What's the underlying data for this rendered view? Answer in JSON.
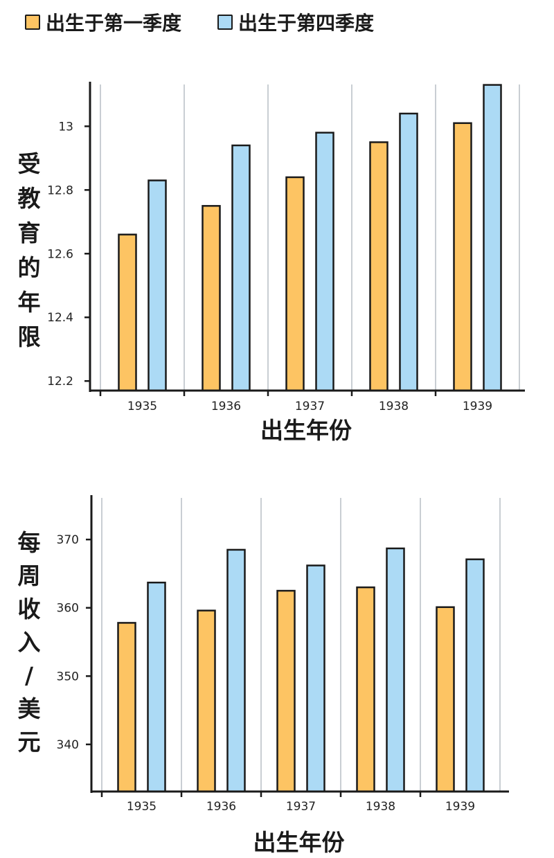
{
  "legend": {
    "q1": {
      "label": "出生于第一季度",
      "color": "#fdc463"
    },
    "q4": {
      "label": "出生于第四季度",
      "color": "#acdaf5"
    }
  },
  "chart_data": [
    {
      "type": "bar",
      "categories": [
        "1935",
        "1936",
        "1937",
        "1938",
        "1939"
      ],
      "series": [
        {
          "name": "出生于第一季度",
          "values": [
            12.66,
            12.75,
            12.84,
            12.95,
            13.01
          ]
        },
        {
          "name": "出生于第四季度",
          "values": [
            12.83,
            12.94,
            12.98,
            13.04,
            13.13
          ]
        }
      ],
      "xlabel": "出生年份",
      "ylabel": "受教育的年限",
      "ylim": [
        12.17,
        13.14
      ],
      "yticks": [
        "12.2",
        "12.4",
        "12.6",
        "12.8",
        "13"
      ],
      "grid": "vertical"
    },
    {
      "type": "bar",
      "categories": [
        "1935",
        "1936",
        "1937",
        "1938",
        "1939"
      ],
      "series": [
        {
          "name": "出生于第一季度",
          "values": [
            357.8,
            359.6,
            362.5,
            363.0,
            360.1
          ]
        },
        {
          "name": "出生于第四季度",
          "values": [
            363.7,
            368.5,
            366.2,
            368.7,
            367.1
          ]
        }
      ],
      "xlabel": "出生年份",
      "ylabel": "每周收入/美元",
      "ylim": [
        333.1,
        376.5
      ],
      "yticks": [
        "340",
        "350",
        "360",
        "370"
      ],
      "grid": "vertical"
    }
  ]
}
